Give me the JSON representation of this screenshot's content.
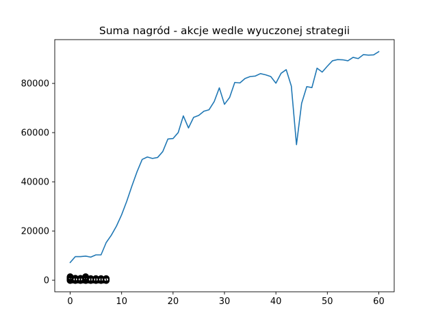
{
  "chart_data": {
    "type": "line",
    "title": "Suma nagród - akcje wedle wyuczonej strategii",
    "xlabel": "",
    "ylabel": "",
    "xlim": [
      -3,
      63
    ],
    "ylim": [
      -4700,
      97800
    ],
    "grid": false,
    "x_ticks": [
      0,
      10,
      20,
      30,
      40,
      50,
      60
    ],
    "x_tick_labels": [
      "0",
      "10",
      "20",
      "30",
      "40",
      "50",
      "60"
    ],
    "y_ticks": [
      0,
      20000,
      40000,
      60000,
      80000
    ],
    "y_tick_labels": [
      "0",
      "20000",
      "40000",
      "60000",
      "80000"
    ],
    "colors": {
      "line": "#1f77b4",
      "markers": "#000000"
    },
    "series": [
      {
        "kind": "line",
        "x": [
          0,
          1,
          2,
          3,
          4,
          5,
          6,
          7,
          8,
          9,
          10,
          11,
          12,
          13,
          14,
          15,
          16,
          17,
          18,
          19,
          20,
          21,
          22,
          23,
          24,
          25,
          26,
          27,
          28,
          29,
          30,
          31,
          32,
          33,
          34,
          35,
          36,
          37,
          38,
          39,
          40,
          41,
          42,
          43,
          44,
          45,
          46,
          47,
          48,
          49,
          50,
          51,
          52,
          53,
          54,
          55,
          56,
          57,
          58,
          59,
          60
        ],
        "values": [
          7200,
          9600,
          9600,
          9800,
          9400,
          10300,
          10300,
          15300,
          18300,
          22000,
          26600,
          32100,
          38300,
          44100,
          49100,
          50100,
          49500,
          49900,
          52300,
          57400,
          57600,
          60000,
          66800,
          61900,
          66200,
          67000,
          68700,
          69300,
          72600,
          78200,
          71500,
          74300,
          80400,
          80200,
          82000,
          82800,
          83000,
          84000,
          83500,
          82800,
          80100,
          84100,
          85600,
          78900,
          55100,
          71900,
          78700,
          78300,
          86200,
          84600,
          87000,
          89200,
          89700,
          89600,
          89200,
          90600,
          90100,
          91700,
          91500,
          91600,
          92900
        ]
      },
      {
        "kind": "scatter",
        "x": [
          0,
          0,
          0,
          0,
          0,
          0,
          0,
          0,
          1,
          1,
          1,
          1,
          2,
          2,
          2,
          2,
          3,
          3,
          3,
          3,
          3,
          3,
          4,
          4,
          4,
          4,
          5,
          5,
          5,
          5,
          6,
          6,
          6,
          6,
          7,
          7,
          7,
          7,
          0.5,
          1.5,
          2.5,
          3.5,
          4.5,
          5.5,
          6.5
        ],
        "values": [
          -100,
          150,
          400,
          650,
          900,
          1150,
          1400,
          50,
          -100,
          200,
          500,
          800,
          -100,
          150,
          450,
          750,
          -100,
          200,
          500,
          800,
          1100,
          1400,
          -100,
          150,
          400,
          650,
          -100,
          150,
          400,
          650,
          -100,
          150,
          400,
          650,
          -100,
          150,
          400,
          650,
          100,
          100,
          100,
          100,
          100,
          100,
          100
        ]
      }
    ]
  }
}
